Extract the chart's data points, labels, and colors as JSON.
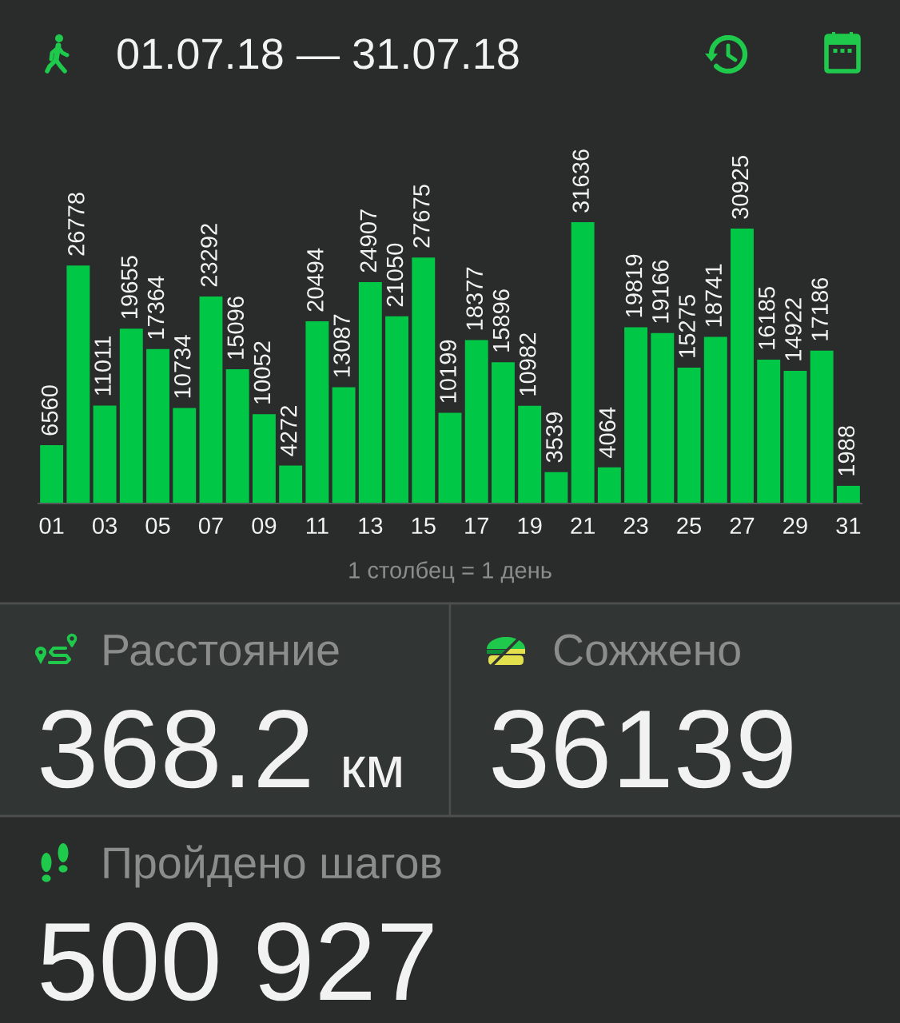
{
  "chart_data": [
    {
      "type": "bar",
      "title": "01.07.18 — 31.07.18",
      "categories": [
        "01",
        null,
        "03",
        null,
        "05",
        null,
        "07",
        null,
        "09",
        null,
        "11",
        null,
        "13",
        null,
        "15",
        null,
        "17",
        null,
        "19",
        null,
        "21",
        null,
        "23",
        null,
        "25",
        null,
        "27",
        null,
        "29",
        null,
        "31"
      ],
      "values": [
        6560,
        26778,
        11011,
        19655,
        17364,
        10734,
        23292,
        15096,
        10052,
        4272,
        20494,
        13087,
        24907,
        21050,
        27675,
        10199,
        18377,
        15896,
        10982,
        3539,
        31636,
        4064,
        19819,
        19166,
        15275,
        18741,
        30925,
        16185,
        14922,
        17186,
        1988
      ],
      "color": "#00c846",
      "data_labels": true,
      "annotations": [
        "1 столбец = 1 день"
      ]
    },
    {
      "type": "other",
      "title": "Расстояние",
      "annotations": [
        "368.2",
        "км"
      ]
    },
    {
      "type": "other",
      "title": "Сожжено",
      "annotations": [
        "36139"
      ]
    },
    {
      "type": "other",
      "title": "Пройдено шагов",
      "annotations": [
        "500 927"
      ]
    }
  ]
}
